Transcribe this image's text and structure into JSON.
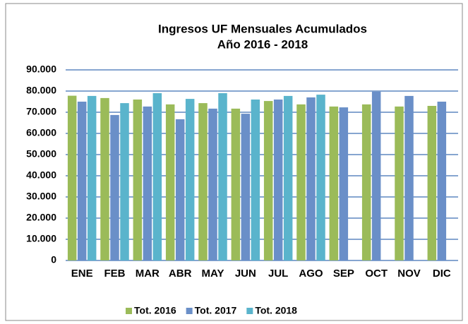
{
  "chart_data": {
    "type": "bar",
    "title": "Ingresos UF Mensuales Acumulados",
    "subtitle": "Año 2016 - 2018",
    "categories": [
      "ENE",
      "FEB",
      "MAR",
      "ABR",
      "MAY",
      "JUN",
      "JUL",
      "AGO",
      "SEP",
      "OCT",
      "NOV",
      "DIC"
    ],
    "series": [
      {
        "name": "Tot. 2016",
        "color": "#9bbb59",
        "values": [
          77800,
          76700,
          76000,
          73700,
          74300,
          71700,
          75300,
          73700,
          72700,
          73700,
          72700,
          73000
        ]
      },
      {
        "name": "Tot. 2017",
        "color": "#6a8fc8",
        "values": [
          75000,
          68700,
          72700,
          66700,
          71700,
          69300,
          76000,
          77000,
          72300,
          79700,
          77700,
          75000
        ]
      },
      {
        "name": "Tot. 2018",
        "color": "#5ab4cc",
        "values": [
          77700,
          74300,
          79000,
          76300,
          79000,
          76000,
          77700,
          78300,
          null,
          null,
          null,
          null
        ]
      }
    ],
    "ylim": [
      0,
      90000
    ],
    "yticks": [
      0,
      {
        "value": 10000,
        "label": "10.000"
      },
      {
        "value": 20000,
        "label": "20.000"
      },
      {
        "value": 30000,
        "label": "30.000"
      },
      {
        "value": 40000,
        "label": "40.000"
      },
      {
        "value": 50000,
        "label": "50.000"
      },
      {
        "value": 60000,
        "label": "60.000"
      },
      {
        "value": 70000,
        "label": "70.000"
      },
      {
        "value": 80000,
        "label": "80.000"
      },
      {
        "value": 90000,
        "label": "90.000"
      }
    ],
    "grid": true,
    "legend": "bottom"
  }
}
